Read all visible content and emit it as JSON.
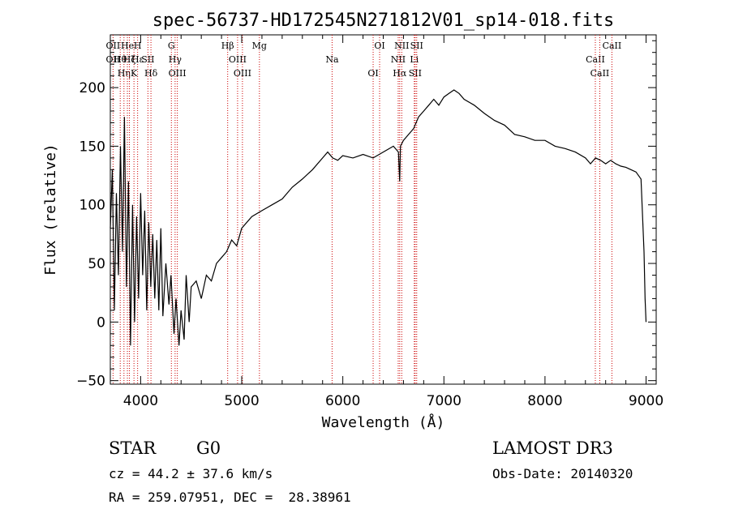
{
  "chart_data": {
    "type": "line",
    "title": "spec-56737-HD172545N271812V01_sp14-018.fits",
    "xlabel": "Wavelength (Å)",
    "ylabel": "Flux (relative)",
    "xlim": [
      3700,
      9100
    ],
    "ylim": [
      -53,
      245
    ],
    "xticks": [
      4000,
      5000,
      6000,
      7000,
      8000,
      9000
    ],
    "yticks": [
      -50,
      0,
      50,
      100,
      150,
      200
    ],
    "grid": false,
    "series": [
      {
        "color": "#000000",
        "x": [
          3700,
          3720,
          3740,
          3760,
          3780,
          3800,
          3820,
          3840,
          3860,
          3880,
          3900,
          3920,
          3940,
          3960,
          3980,
          4000,
          4020,
          4040,
          4060,
          4080,
          4100,
          4120,
          4140,
          4160,
          4180,
          4200,
          4220,
          4250,
          4280,
          4300,
          4330,
          4350,
          4380,
          4400,
          4430,
          4450,
          4480,
          4500,
          4550,
          4600,
          4650,
          4700,
          4750,
          4800,
          4850,
          4900,
          4950,
          5000,
          5100,
          5200,
          5300,
          5400,
          5500,
          5600,
          5700,
          5800,
          5850,
          5900,
          5950,
          6000,
          6100,
          6200,
          6300,
          6400,
          6500,
          6550,
          6563,
          6570,
          6600,
          6650,
          6700,
          6750,
          6800,
          6850,
          6900,
          6950,
          7000,
          7050,
          7100,
          7150,
          7200,
          7300,
          7400,
          7500,
          7600,
          7700,
          7800,
          7900,
          8000,
          8100,
          8200,
          8300,
          8400,
          8450,
          8500,
          8550,
          8600,
          8650,
          8700,
          8750,
          8800,
          8850,
          8900,
          8950,
          8980,
          8990,
          9000
        ],
        "y": [
          80,
          130,
          10,
          110,
          40,
          150,
          60,
          175,
          30,
          120,
          -20,
          100,
          0,
          90,
          20,
          110,
          40,
          95,
          10,
          85,
          30,
          75,
          20,
          70,
          10,
          80,
          5,
          50,
          15,
          40,
          -10,
          20,
          -20,
          10,
          -15,
          40,
          0,
          30,
          35,
          20,
          40,
          35,
          50,
          55,
          60,
          70,
          65,
          80,
          90,
          95,
          100,
          105,
          115,
          122,
          130,
          140,
          145,
          140,
          138,
          142,
          140,
          143,
          140,
          145,
          150,
          145,
          120,
          150,
          155,
          160,
          165,
          175,
          180,
          185,
          190,
          185,
          192,
          195,
          198,
          195,
          190,
          185,
          178,
          172,
          168,
          160,
          158,
          155,
          155,
          150,
          148,
          145,
          140,
          135,
          140,
          138,
          135,
          138,
          135,
          133,
          132,
          130,
          128,
          122,
          60,
          20,
          0
        ]
      }
    ],
    "lines": [
      {
        "x": 3727,
        "labels": [
          "OII",
          "OII"
        ]
      },
      {
        "x": 3798,
        "labels": [
          "Hθ"
        ]
      },
      {
        "x": 3835,
        "labels": [
          "Hη"
        ]
      },
      {
        "x": 3869,
        "labels": [
          "He"
        ]
      },
      {
        "x": 3889,
        "labels": [
          "Hζ"
        ]
      },
      {
        "x": 3934,
        "labels": [
          "K"
        ]
      },
      {
        "x": 3970,
        "labels": [
          "H",
          "Hε"
        ]
      },
      {
        "x": 4072,
        "labels": [
          "SII"
        ]
      },
      {
        "x": 4102,
        "labels": [
          "Hδ"
        ]
      },
      {
        "x": 4304,
        "labels": [
          "G"
        ]
      },
      {
        "x": 4341,
        "labels": [
          "Hγ"
        ]
      },
      {
        "x": 4363,
        "labels": [
          "OIII"
        ]
      },
      {
        "x": 4861,
        "labels": [
          "Hβ"
        ]
      },
      {
        "x": 4959,
        "labels": [
          "OIII"
        ]
      },
      {
        "x": 5007,
        "labels": [
          "OIII"
        ]
      },
      {
        "x": 5175,
        "labels": [
          "Mg"
        ]
      },
      {
        "x": 5894,
        "labels": [
          "Na"
        ]
      },
      {
        "x": 6300,
        "labels": [
          "OI"
        ]
      },
      {
        "x": 6364,
        "labels": [
          "OI"
        ]
      },
      {
        "x": 6548,
        "labels": [
          "NII"
        ]
      },
      {
        "x": 6563,
        "labels": [
          "Hα"
        ]
      },
      {
        "x": 6583,
        "labels": [
          "NII"
        ]
      },
      {
        "x": 6707,
        "labels": [
          "Li"
        ]
      },
      {
        "x": 6716,
        "labels": [
          "SII"
        ]
      },
      {
        "x": 6731,
        "labels": [
          "SII"
        ]
      },
      {
        "x": 8498,
        "labels": [
          "CaII"
        ]
      },
      {
        "x": 8542,
        "labels": [
          "CaII"
        ]
      },
      {
        "x": 8662,
        "labels": [
          "CaII"
        ]
      }
    ]
  },
  "info": {
    "class_type": "STAR",
    "subclass": "G0",
    "survey": "LAMOST DR3",
    "redshift": "cz = 44.2 ± 37.6 km/s",
    "obs_date": "Obs-Date: 20140320",
    "coords": "RA = 259.07951, DEC =  28.38961"
  }
}
